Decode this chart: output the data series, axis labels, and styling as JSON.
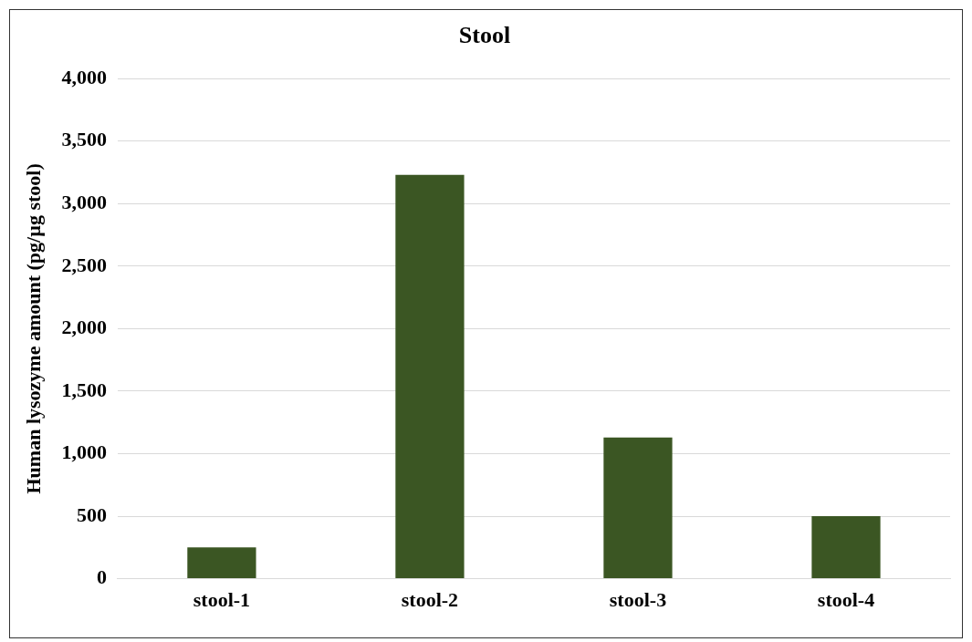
{
  "chart_data": {
    "type": "bar",
    "title": "Stool",
    "ylabel": "Human lysozyme amount (pg/µg stool)",
    "categories": [
      "stool-1",
      "stool-2",
      "stool-3",
      "stool-4"
    ],
    "values": [
      250,
      3230,
      1130,
      500
    ],
    "color": "#3b5623",
    "ylim": [
      0,
      4000
    ],
    "yticks": [
      {
        "value": 0,
        "label": "0"
      },
      {
        "value": 500,
        "label": "500"
      },
      {
        "value": 1000,
        "label": "1,000"
      },
      {
        "value": 1500,
        "label": "1,500"
      },
      {
        "value": 2000,
        "label": "2,000"
      },
      {
        "value": 2500,
        "label": "2,500"
      },
      {
        "value": 3000,
        "label": "3,000"
      },
      {
        "value": 3500,
        "label": "3,500"
      },
      {
        "value": 4000,
        "label": "4,000"
      }
    ],
    "grid": "y",
    "legend": false
  }
}
